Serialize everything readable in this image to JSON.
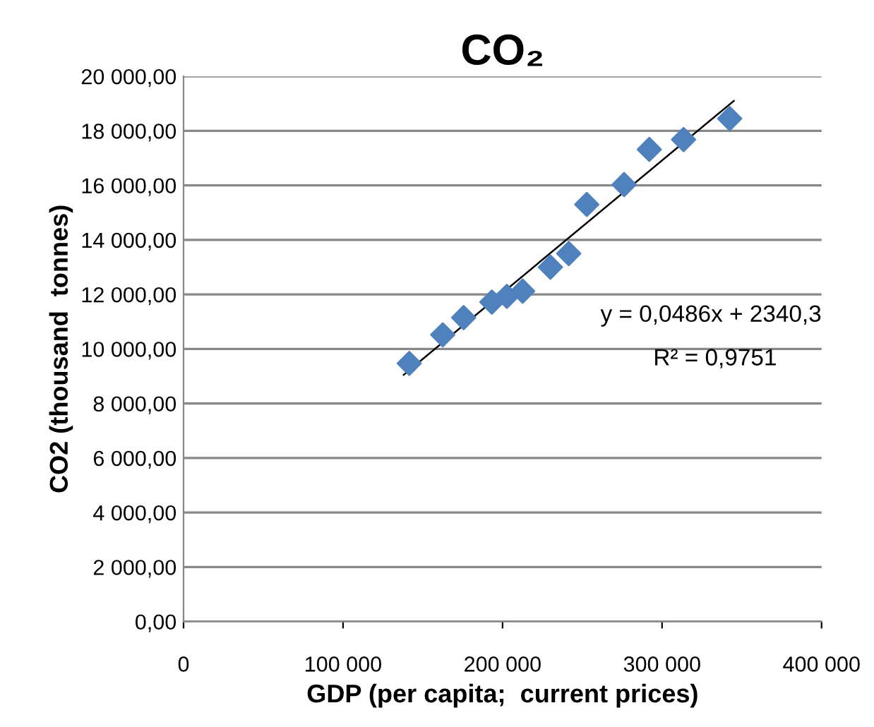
{
  "chart_data": {
    "type": "scatter",
    "title": "CO₂",
    "xlabel": "GDP (per capita;  current prices)",
    "ylabel": "CO2 (thousand  tonnes)",
    "series": [
      {
        "color": "#4f81bd",
        "marker": "diamond",
        "x": [
          141500,
          162500,
          175600,
          193300,
          202700,
          212600,
          230000,
          241500,
          252800,
          276200,
          292000,
          313500,
          342400
        ],
        "values": [
          9470,
          10520,
          11150,
          11720,
          11930,
          12120,
          13000,
          13500,
          15300,
          16030,
          17320,
          17680,
          18450
        ]
      },
      {
        "type": "line",
        "color": "#000000",
        "marker": "none",
        "x": [
          138000,
          345000
        ],
        "values": [
          9050,
          19100
        ]
      }
    ],
    "annotations": [
      "y = 0,0486x + 2340,3",
      "R² = 0,9751"
    ],
    "xlim": [
      0,
      400000
    ],
    "ylim": [
      0,
      20000
    ],
    "xticks": [
      0,
      {
        "value": 100000,
        "label": "100 000"
      },
      {
        "value": 200000,
        "label": "200 000"
      },
      {
        "value": 300000,
        "label": "300 000"
      },
      {
        "value": 400000,
        "label": "400 000"
      }
    ],
    "yticks": [
      {
        "value": 0,
        "label": "0,00"
      },
      {
        "value": 2000,
        "label": "2 000,00"
      },
      {
        "value": 4000,
        "label": "4 000,00"
      },
      {
        "value": 6000,
        "label": "6 000,00"
      },
      {
        "value": 8000,
        "label": "8 000,00"
      },
      {
        "value": 10000,
        "label": "10 000,00"
      },
      {
        "value": 12000,
        "label": "12 000,00"
      },
      {
        "value": 14000,
        "label": "14 000,00"
      },
      {
        "value": 16000,
        "label": "16 000,00"
      },
      {
        "value": 18000,
        "label": "18 000,00"
      },
      {
        "value": 20000,
        "label": "20 000,00"
      }
    ],
    "grid": "y",
    "legend": false
  }
}
